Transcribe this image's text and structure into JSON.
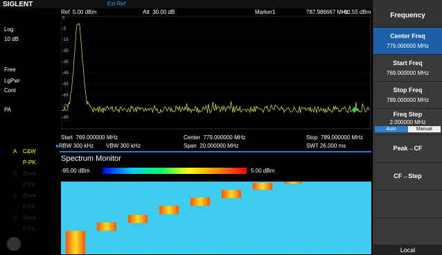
{
  "top_bar": {
    "brand": "SIGLENT",
    "ref_source": "Ext Ref"
  },
  "status": {
    "scale_type": "Log",
    "scale_div": "10 dB",
    "trigger": "Free",
    "detector": "LgPwr",
    "sweep": "Cont",
    "preamp": "PA"
  },
  "traces": [
    {
      "id": "A",
      "mode": "C&W",
      "detector": "P-PK"
    },
    {
      "id": "B",
      "mode": "Blank",
      "detector": "P-PK"
    },
    {
      "id": "C",
      "mode": "Blank",
      "detector": "P-PK"
    },
    {
      "id": "D",
      "mode": "Blank",
      "detector": "P-PK"
    }
  ],
  "header": {
    "ref": "Ref",
    "ref_value": "5.00 dBm",
    "att": "Att",
    "att_value": "30.00 dB",
    "marker": "Marker1",
    "marker_freq": "787.986667 MHz",
    "marker_level": "-80.55 dBm"
  },
  "y_labels": [
    "5",
    "-5",
    "-15",
    "-25",
    "-35",
    "-45",
    "-55",
    "-65",
    "-75",
    "-85"
  ],
  "footer": {
    "start": "Start",
    "start_value": "769.000000 MHz",
    "center": "Center",
    "center_value": "779.000000 MHz",
    "stop": "Stop",
    "stop_value": "789.000000 MHz",
    "rbw": "RBW",
    "rbw_value": "300 kHz",
    "vbw": "VBW",
    "vbw_value": "300 kHz",
    "span": "Span",
    "span_value": "20.000000 MHz",
    "swt": "SWT",
    "swt_value": "26.000 ms"
  },
  "monitor": {
    "title": "Spectrum Monitor",
    "min": "-95.00 dBm",
    "max": "5.00 dBm"
  },
  "softkeys": {
    "title": "Frequency",
    "buttons": [
      {
        "label": "Center Freq",
        "value": "779.000000 MHz"
      },
      {
        "label": "Start Freq",
        "value": "769.000000 MHz"
      },
      {
        "label": "Stop Freq",
        "value": "789.000000 MHz"
      },
      {
        "label": "Freq Step",
        "value": "2.000000 MHz"
      }
    ],
    "step_modes": [
      "Auto",
      "Manual"
    ],
    "actions": [
      "Peak→CF",
      "CF→Step"
    ],
    "local": "Local"
  }
}
